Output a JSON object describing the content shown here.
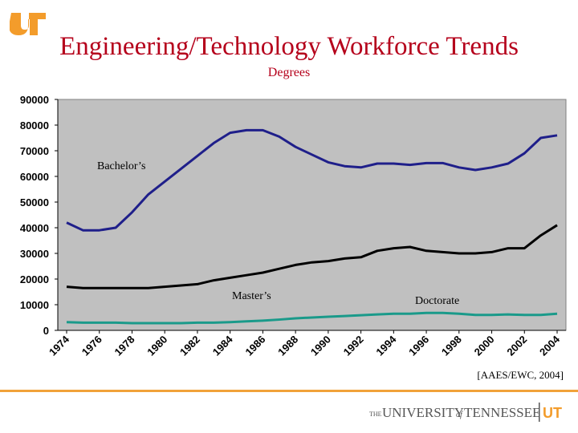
{
  "header": {
    "title": "Engineering/Technology Workforce Trends",
    "subtitle": "Degrees",
    "accent_color": "#b5001b",
    "logo_color": "#f39c2b"
  },
  "footer": {
    "source": "[AAES/EWC, 2004]",
    "rule_color": "#f1a23a",
    "logo_text_the": "THE",
    "logo_text_main": "UNIVERSITY",
    "logo_text_of": "of",
    "logo_text_state": "TENNESSEE",
    "logo_mark": "UT"
  },
  "chart_data": {
    "type": "line",
    "title": "Degrees",
    "xlabel": "",
    "ylabel": "",
    "ylim": [
      0,
      90000
    ],
    "yticks": [
      "0",
      "10000",
      "20000",
      "30000",
      "40000",
      "50000",
      "60000",
      "70000",
      "80000",
      "90000"
    ],
    "xticks": [
      "1974",
      "1976",
      "1978",
      "1980",
      "1982",
      "1984",
      "1986",
      "1988",
      "1990",
      "1992",
      "1994",
      "1996",
      "1998",
      "2000",
      "2002",
      "2004"
    ],
    "x": [
      1974,
      1975,
      1976,
      1977,
      1978,
      1979,
      1980,
      1981,
      1982,
      1983,
      1984,
      1985,
      1986,
      1987,
      1988,
      1989,
      1990,
      1991,
      1992,
      1993,
      1994,
      1995,
      1996,
      1997,
      1998,
      1999,
      2000,
      2001,
      2002,
      2003,
      2004
    ],
    "grid": false,
    "plot_background": "#c0c0c0",
    "series": [
      {
        "name": "Bachelor’s",
        "color": "#1f1f8a",
        "values": [
          42000,
          39000,
          39000,
          40000,
          46000,
          53000,
          58000,
          63000,
          68000,
          73000,
          77000,
          78000,
          78000,
          75500,
          71500,
          68500,
          65500,
          64000,
          63500,
          65000,
          65000,
          64500,
          65200,
          65200,
          63500,
          62500,
          63500,
          65000,
          69000,
          75000,
          76000
        ]
      },
      {
        "name": "Master’s",
        "color": "#000000",
        "values": [
          17000,
          16500,
          16500,
          16500,
          16500,
          16500,
          17000,
          17500,
          18000,
          19500,
          20500,
          21500,
          22500,
          24000,
          25500,
          26500,
          27000,
          28000,
          28500,
          31000,
          32000,
          32500,
          31000,
          30500,
          30000,
          30000,
          30500,
          32000,
          32000,
          37000,
          41000
        ]
      },
      {
        "name": "Doctorate",
        "color": "#1a9a8a",
        "values": [
          3200,
          3000,
          3000,
          3000,
          2800,
          2800,
          2800,
          2800,
          3000,
          3000,
          3200,
          3500,
          3800,
          4200,
          4700,
          5000,
          5300,
          5600,
          5900,
          6200,
          6500,
          6500,
          6800,
          6800,
          6500,
          6000,
          6000,
          6200,
          6000,
          6000,
          6500
        ]
      }
    ],
    "annotations": [
      {
        "text": "Bachelor’s",
        "series": 0
      },
      {
        "text": "Master’s",
        "series": 1
      },
      {
        "text": "Doctorate",
        "series": 2
      }
    ]
  }
}
